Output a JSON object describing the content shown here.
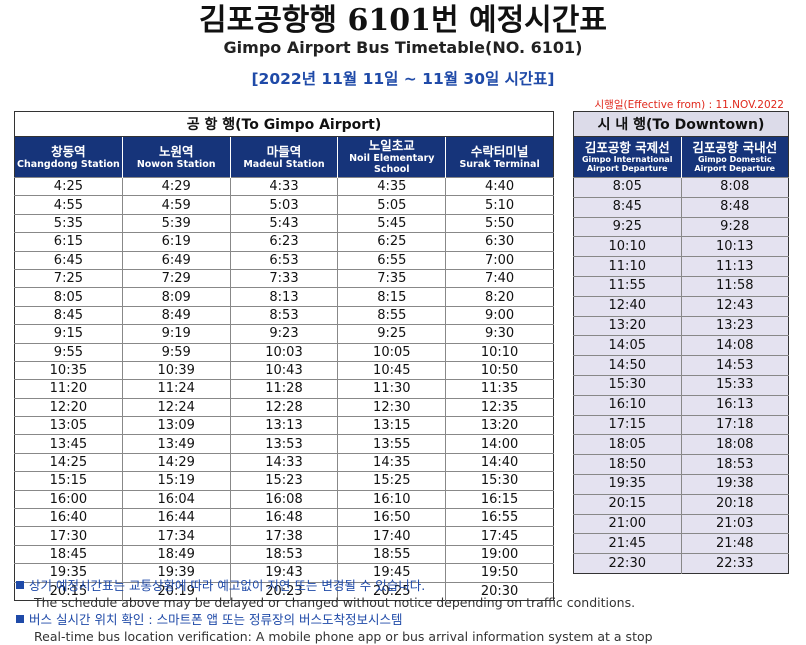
{
  "header": {
    "title": "김포공항행 6101번 예정시간표",
    "subtitle": "Gimpo Airport Bus Timetable(NO. 6101)",
    "period": "[2022년 11월 11일 ~ 11월 30일 시간표]",
    "effective": "시행일(Effective from) : 11.NOV.2022"
  },
  "airport": {
    "title": "공 항 행(To Gimpo Airport)",
    "columns": [
      {
        "ko": "창동역",
        "en": "Changdong Station"
      },
      {
        "ko": "노원역",
        "en": "Nowon Station"
      },
      {
        "ko": "마들역",
        "en": "Madeul Station"
      },
      {
        "ko": "노일초교",
        "en": "Noil Elementary School"
      },
      {
        "ko": "수락터미널",
        "en": "Surak Terminal"
      }
    ],
    "rows": [
      [
        "4:25",
        "4:29",
        "4:33",
        "4:35",
        "4:40"
      ],
      [
        "4:55",
        "4:59",
        "5:03",
        "5:05",
        "5:10"
      ],
      [
        "5:35",
        "5:39",
        "5:43",
        "5:45",
        "5:50"
      ],
      [
        "6:15",
        "6:19",
        "6:23",
        "6:25",
        "6:30"
      ],
      [
        "6:45",
        "6:49",
        "6:53",
        "6:55",
        "7:00"
      ],
      [
        "7:25",
        "7:29",
        "7:33",
        "7:35",
        "7:40"
      ],
      [
        "8:05",
        "8:09",
        "8:13",
        "8:15",
        "8:20"
      ],
      [
        "8:45",
        "8:49",
        "8:53",
        "8:55",
        "9:00"
      ],
      [
        "9:15",
        "9:19",
        "9:23",
        "9:25",
        "9:30"
      ],
      [
        "9:55",
        "9:59",
        "10:03",
        "10:05",
        "10:10"
      ],
      [
        "10:35",
        "10:39",
        "10:43",
        "10:45",
        "10:50"
      ],
      [
        "11:20",
        "11:24",
        "11:28",
        "11:30",
        "11:35"
      ],
      [
        "12:20",
        "12:24",
        "12:28",
        "12:30",
        "12:35"
      ],
      [
        "13:05",
        "13:09",
        "13:13",
        "13:15",
        "13:20"
      ],
      [
        "13:45",
        "13:49",
        "13:53",
        "13:55",
        "14:00"
      ],
      [
        "14:25",
        "14:29",
        "14:33",
        "14:35",
        "14:40"
      ],
      [
        "15:15",
        "15:19",
        "15:23",
        "15:25",
        "15:30"
      ],
      [
        "16:00",
        "16:04",
        "16:08",
        "16:10",
        "16:15"
      ],
      [
        "16:40",
        "16:44",
        "16:48",
        "16:50",
        "16:55"
      ],
      [
        "17:30",
        "17:34",
        "17:38",
        "17:40",
        "17:45"
      ],
      [
        "18:45",
        "18:49",
        "18:53",
        "18:55",
        "19:00"
      ],
      [
        "19:35",
        "19:39",
        "19:43",
        "19:45",
        "19:50"
      ],
      [
        "20:15",
        "20:19",
        "20:23",
        "20:25",
        "20:30"
      ]
    ]
  },
  "downtown": {
    "title": "시 내 행(To Downtown)",
    "columns": [
      {
        "ko": "김포공항 국제선",
        "en": "Gimpo International Airport Departure"
      },
      {
        "ko": "김포공항 국내선",
        "en": "Gimpo Domestic Airport Departure"
      }
    ],
    "rows": [
      [
        "8:05",
        "8:08"
      ],
      [
        "8:45",
        "8:48"
      ],
      [
        "9:25",
        "9:28"
      ],
      [
        "10:10",
        "10:13"
      ],
      [
        "11:10",
        "11:13"
      ],
      [
        "11:55",
        "11:58"
      ],
      [
        "12:40",
        "12:43"
      ],
      [
        "13:20",
        "13:23"
      ],
      [
        "14:05",
        "14:08"
      ],
      [
        "14:50",
        "14:53"
      ],
      [
        "15:30",
        "15:33"
      ],
      [
        "16:10",
        "16:13"
      ],
      [
        "17:15",
        "17:18"
      ],
      [
        "18:05",
        "18:08"
      ],
      [
        "18:50",
        "18:53"
      ],
      [
        "19:35",
        "19:38"
      ],
      [
        "20:15",
        "20:18"
      ],
      [
        "21:00",
        "21:03"
      ],
      [
        "21:45",
        "21:48"
      ],
      [
        "22:30",
        "22:33"
      ]
    ]
  },
  "notes": [
    {
      "ko": "상기 예정시간표는 교통상황에 따라 예고없이 지연 또는 변경될 수 있습니다.",
      "en": "The schedule above may be delayed or changed without notice depending on traffic conditions."
    },
    {
      "ko": "버스 실시간 위치 확인 : 스마트폰 앱 또는 정류장의 버스도착정보시스템",
      "en": "Real-time bus location verification: A mobile phone app or bus arrival information system at a stop"
    }
  ],
  "colors": {
    "header_blue": "#16347a",
    "accent_blue": "#1f4aa8",
    "effective_red": "#e0281c",
    "downtown_bg": "#e4e2f0"
  }
}
